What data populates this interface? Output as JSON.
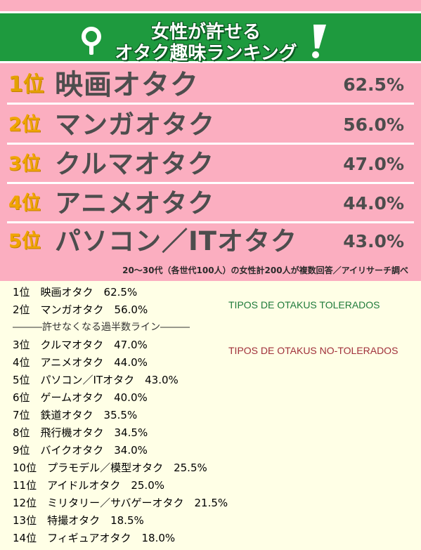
{
  "banner": {
    "line1": "女性が許せる",
    "line2": "オタク趣味ランキング",
    "icon_left": "search-icon",
    "icon_right": "exclamation-icon"
  },
  "top_ranks": [
    {
      "rank": "1位",
      "name": "映画オタク",
      "percent": "62.5%"
    },
    {
      "rank": "2位",
      "name": "マンガオタク",
      "percent": "56.0%"
    },
    {
      "rank": "3位",
      "name": "クルマオタク",
      "percent": "47.0%"
    },
    {
      "rank": "4位",
      "name": "アニメオタク",
      "percent": "44.0%"
    },
    {
      "rank": "5位",
      "name": "パソコン／ITオタク",
      "percent": "43.0%"
    }
  ],
  "footnote": "20～30代（各世代100人）の女性計200人が複数回答／アイリサーチ調べ",
  "full_list": [
    "1位　映画オタク　62.5%",
    "2位　マンガオタク　56.0%",
    "―――許せなくなる過半数ライン―――",
    "3位　クルマオタク　47.0%",
    "4位　アニメオタク　44.0%",
    "5位　パソコン／ITオタク　43.0%",
    "6位　ゲームオタク　40.0%",
    "7位　鉄道オタク　35.5%",
    "8位　飛行機オタク　34.5%",
    "9位　バイクオタク　34.0%",
    "10位　プラモデル／模型オタク　25.5%",
    "11位　アイドルオタク　25.0%",
    "12位　ミリタリー／サバゲーオタク　21.5%",
    "13位　特撮オタク　18.5%",
    "14位　フィギュアオタク　18.0%"
  ],
  "legend": {
    "tolerated": "TIPOS DE OTAKUS TOLERADOS",
    "not_tolerated": "TIPOS DE OTAKUS NO-TOLERADOS"
  },
  "colors": {
    "pink_bg": "#fbaec0",
    "banner_green": "#1e9a3e",
    "rank_gold": "#f0a500",
    "text_gray": "#4d4d4d",
    "list_bg": "#ffffe6",
    "legend_green": "#1e7a3a",
    "legend_red": "#a0303a"
  }
}
